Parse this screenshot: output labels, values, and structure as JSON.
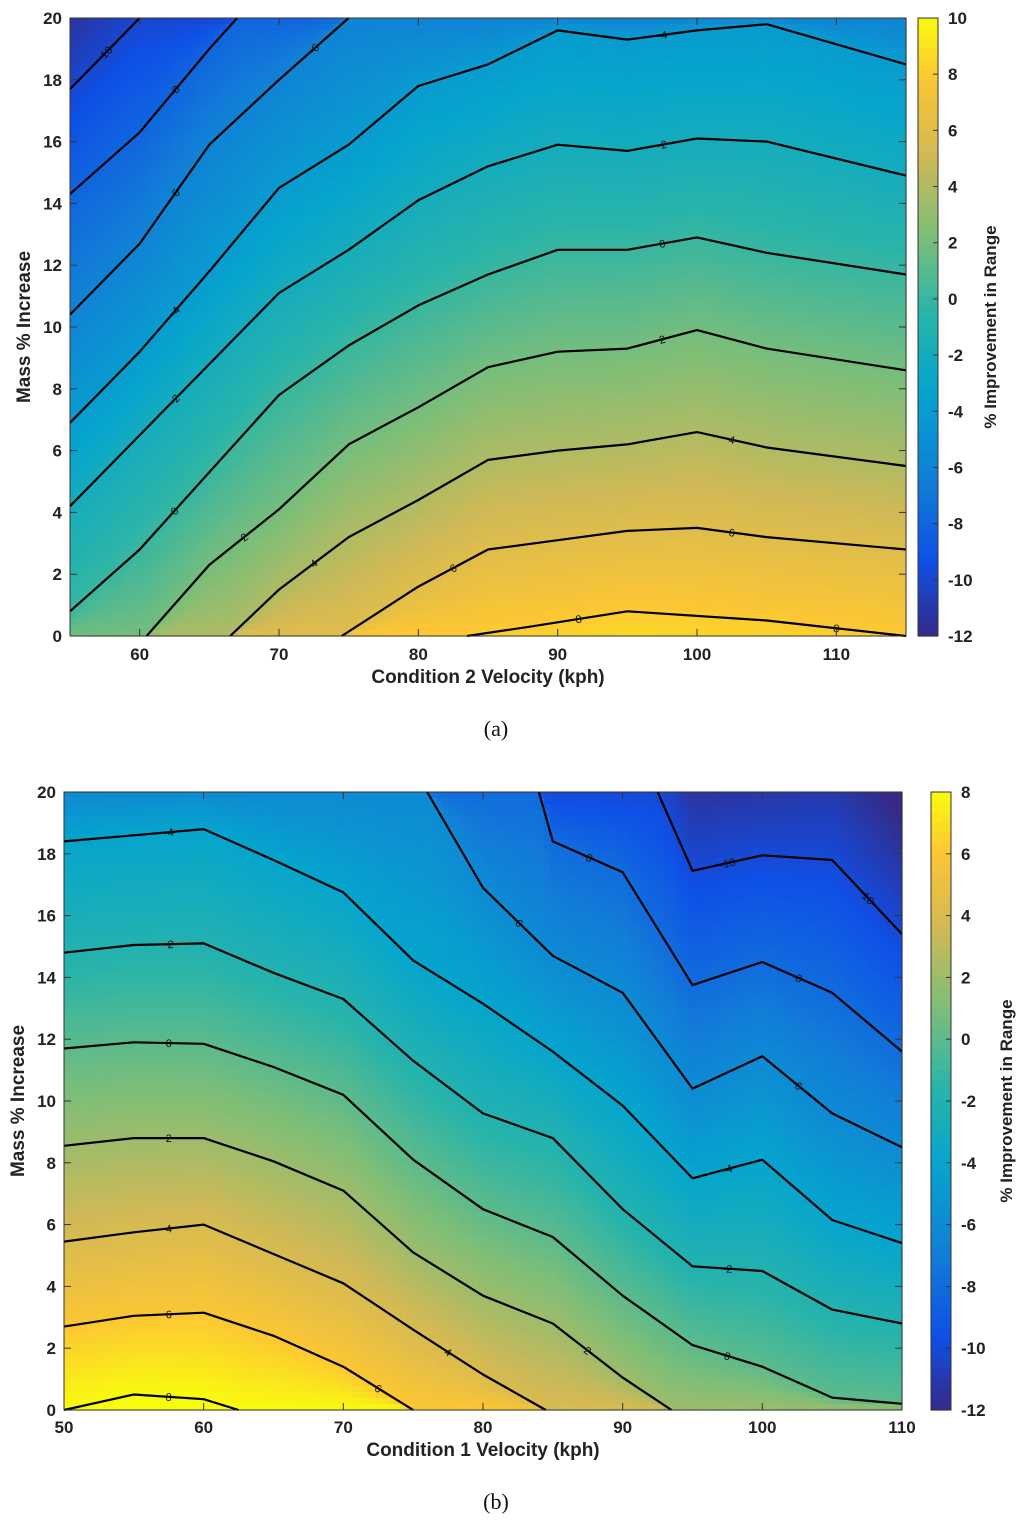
{
  "chart_data": [
    {
      "type": "contour",
      "caption": "(a)",
      "xlabel": "Condition 2 Velocity (kph)",
      "ylabel": "Mass % Increase",
      "colorbar_label": "% Improvement in Range",
      "xlim": [
        55,
        115
      ],
      "ylim": [
        0,
        20
      ],
      "xticks": [
        "60",
        "70",
        "80",
        "90",
        "100",
        "110"
      ],
      "yticks": [
        "0",
        "2",
        "4",
        "6",
        "8",
        "10",
        "12",
        "14",
        "16",
        "18",
        "20"
      ],
      "clim": [
        -12,
        10
      ],
      "cbticks": [
        "10",
        "8",
        "6",
        "4",
        "2",
        "0",
        "-2",
        "-4",
        "-6",
        "-8",
        "-10",
        "-12"
      ],
      "x": [
        55,
        60,
        65,
        70,
        75,
        80,
        85,
        90,
        95,
        100,
        105,
        115
      ],
      "contours": [
        {
          "level": "8",
          "points": [
            [
              83.5,
              0
            ],
            [
              88,
              0.3
            ],
            [
              95,
              0.8
            ],
            [
              105,
              0.5
            ],
            [
              115,
              0
            ]
          ]
        },
        {
          "level": "6",
          "points": [
            [
              74.5,
              0
            ],
            [
              80,
              1.6
            ],
            [
              85,
              2.8
            ],
            [
              90,
              3.1
            ],
            [
              95,
              3.4
            ],
            [
              100,
              3.5
            ],
            [
              105,
              3.2
            ],
            [
              115,
              2.8
            ]
          ]
        },
        {
          "level": "4",
          "points": [
            [
              66.5,
              0
            ],
            [
              70,
              1.5
            ],
            [
              75,
              3.2
            ],
            [
              80,
              4.4
            ],
            [
              85,
              5.7
            ],
            [
              90,
              6.0
            ],
            [
              95,
              6.2
            ],
            [
              100,
              6.6
            ],
            [
              105,
              6.1
            ],
            [
              115,
              5.5
            ]
          ]
        },
        {
          "level": "2",
          "points": [
            [
              60.5,
              0
            ],
            [
              65,
              2.3
            ],
            [
              70,
              4.1
            ],
            [
              75,
              6.2
            ],
            [
              80,
              7.4
            ],
            [
              85,
              8.7
            ],
            [
              90,
              9.2
            ],
            [
              95,
              9.3
            ],
            [
              100,
              9.9
            ],
            [
              105,
              9.3
            ],
            [
              115,
              8.6
            ]
          ]
        },
        {
          "level": "0",
          "points": [
            [
              55,
              0.8
            ],
            [
              60,
              2.8
            ],
            [
              65,
              5.3
            ],
            [
              70,
              7.8
            ],
            [
              75,
              9.4
            ],
            [
              80,
              10.7
            ],
            [
              85,
              11.7
            ],
            [
              90,
              12.5
            ],
            [
              95,
              12.5
            ],
            [
              100,
              12.9
            ],
            [
              105,
              12.4
            ],
            [
              115,
              11.7
            ]
          ]
        },
        {
          "level": "-2",
          "points": [
            [
              55,
              4.2
            ],
            [
              60,
              6.5
            ],
            [
              65,
              8.8
            ],
            [
              70,
              11.1
            ],
            [
              75,
              12.5
            ],
            [
              80,
              14.1
            ],
            [
              85,
              15.2
            ],
            [
              90,
              15.9
            ],
            [
              95,
              15.7
            ],
            [
              100,
              16.1
            ],
            [
              105,
              16.0
            ],
            [
              115,
              14.9
            ]
          ]
        },
        {
          "level": "-4",
          "points": [
            [
              55,
              6.9
            ],
            [
              60,
              9.2
            ],
            [
              65,
              11.8
            ],
            [
              70,
              14.5
            ],
            [
              75,
              15.9
            ],
            [
              80,
              17.8
            ],
            [
              85,
              18.5
            ],
            [
              90,
              19.6
            ],
            [
              95,
              19.3
            ],
            [
              100,
              19.6
            ],
            [
              105,
              19.8
            ],
            [
              115,
              18.5
            ]
          ]
        },
        {
          "level": "-6",
          "points": [
            [
              55,
              10.4
            ],
            [
              60,
              12.7
            ],
            [
              65,
              15.9
            ],
            [
              70,
              18.0
            ],
            [
              75,
              20
            ]
          ]
        },
        {
          "level": "-8",
          "points": [
            [
              55,
              14.3
            ],
            [
              60,
              16.3
            ],
            [
              65,
              19.0
            ],
            [
              67,
              20
            ]
          ]
        },
        {
          "level": "-10",
          "points": [
            [
              55,
              17.7
            ],
            [
              60,
              20
            ]
          ]
        }
      ]
    },
    {
      "type": "contour",
      "caption": "(b)",
      "xlabel": "Condition 1 Velocity (kph)",
      "ylabel": "Mass % Increase",
      "colorbar_label": "% Improvement in Range",
      "xlim": [
        50,
        110
      ],
      "ylim": [
        0,
        20
      ],
      "xticks": [
        "50",
        "60",
        "70",
        "80",
        "90",
        "100",
        "110"
      ],
      "yticks": [
        "0",
        "2",
        "4",
        "6",
        "8",
        "10",
        "12",
        "14",
        "16",
        "18",
        "20"
      ],
      "clim": [
        -12,
        8
      ],
      "cbticks": [
        "8",
        "6",
        "4",
        "2",
        "0",
        "-2",
        "-4",
        "-6",
        "-8",
        "-10",
        "-12"
      ],
      "x": [
        50,
        55,
        60,
        65,
        70,
        75,
        80,
        85,
        90,
        95,
        100,
        105,
        110
      ],
      "contours": [
        {
          "level": "8",
          "points": [
            [
              50,
              0
            ],
            [
              55,
              0.5
            ],
            [
              60,
              0.35
            ],
            [
              62.5,
              0
            ]
          ]
        },
        {
          "level": "6",
          "points": [
            [
              50,
              2.7
            ],
            [
              55,
              3.05
            ],
            [
              60,
              3.15
            ],
            [
              65,
              2.4
            ],
            [
              70,
              1.4
            ],
            [
              75,
              0
            ]
          ]
        },
        {
          "level": "4",
          "points": [
            [
              50,
              5.45
            ],
            [
              55,
              5.75
            ],
            [
              60,
              6.0
            ],
            [
              65,
              5.05
            ],
            [
              70,
              4.1
            ],
            [
              75,
              2.6
            ],
            [
              80,
              1.15
            ],
            [
              84.5,
              0
            ]
          ]
        },
        {
          "level": "2",
          "points": [
            [
              50,
              8.55
            ],
            [
              55,
              8.8
            ],
            [
              60,
              8.8
            ],
            [
              65,
              8.05
            ],
            [
              70,
              7.1
            ],
            [
              75,
              5.1
            ],
            [
              80,
              3.7
            ],
            [
              85,
              2.8
            ],
            [
              90,
              1.05
            ],
            [
              93.5,
              0
            ]
          ]
        },
        {
          "level": "0",
          "points": [
            [
              50,
              11.7
            ],
            [
              55,
              11.9
            ],
            [
              60,
              11.85
            ],
            [
              65,
              11.1
            ],
            [
              70,
              10.2
            ],
            [
              75,
              8.1
            ],
            [
              80,
              6.5
            ],
            [
              85,
              5.6
            ],
            [
              90,
              3.7
            ],
            [
              95,
              2.1
            ],
            [
              100,
              1.4
            ],
            [
              105,
              0.4
            ],
            [
              110,
              0.2
            ]
          ]
        },
        {
          "level": "-2",
          "points": [
            [
              50,
              14.8
            ],
            [
              55,
              15.05
            ],
            [
              60,
              15.1
            ],
            [
              65,
              14.15
            ],
            [
              70,
              13.3
            ],
            [
              75,
              11.3
            ],
            [
              80,
              9.6
            ],
            [
              85,
              8.8
            ],
            [
              90,
              6.5
            ],
            [
              95,
              4.65
            ],
            [
              100,
              4.5
            ],
            [
              105,
              3.25
            ],
            [
              110,
              2.8
            ]
          ]
        },
        {
          "level": "-4",
          "points": [
            [
              50,
              18.4
            ],
            [
              55,
              18.6
            ],
            [
              60,
              18.8
            ],
            [
              65,
              17.8
            ],
            [
              70,
              16.75
            ],
            [
              75,
              14.55
            ],
            [
              80,
              13.15
            ],
            [
              85,
              11.6
            ],
            [
              90,
              9.85
            ],
            [
              95,
              7.5
            ],
            [
              100,
              8.1
            ],
            [
              105,
              6.15
            ],
            [
              110,
              5.4
            ]
          ]
        },
        {
          "level": "-6",
          "points": [
            [
              76,
              20
            ],
            [
              80,
              16.9
            ],
            [
              85,
              14.7
            ],
            [
              90,
              13.5
            ],
            [
              95,
              10.4
            ],
            [
              100,
              11.45
            ],
            [
              105,
              9.6
            ],
            [
              110,
              8.5
            ]
          ]
        },
        {
          "level": "-8",
          "points": [
            [
              84,
              20
            ],
            [
              85,
              18.4
            ],
            [
              90,
              17.4
            ],
            [
              95,
              13.75
            ],
            [
              100,
              14.5
            ],
            [
              105,
              13.5
            ],
            [
              110,
              11.6
            ]
          ]
        },
        {
          "level": "-10",
          "points": [
            [
              92.5,
              20
            ],
            [
              95,
              17.45
            ],
            [
              100,
              17.95
            ],
            [
              105,
              17.8
            ],
            [
              110,
              15.4
            ]
          ]
        }
      ]
    }
  ]
}
